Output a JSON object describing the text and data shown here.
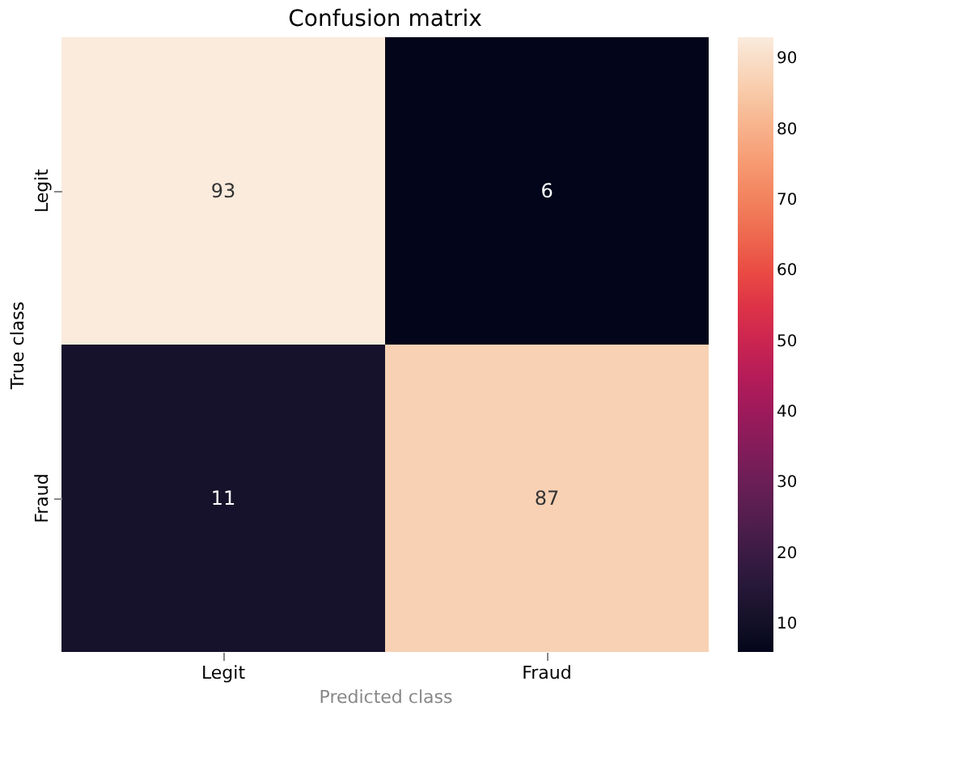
{
  "chart_data": {
    "type": "heatmap",
    "title": "Confusion matrix",
    "xlabel": "Predicted class",
    "ylabel": "True class",
    "categories": [
      "Legit",
      "Fraud"
    ],
    "y_categories": [
      "Legit",
      "Fraud"
    ],
    "cells": [
      [
        93,
        6
      ],
      [
        11,
        87
      ]
    ],
    "clim": [
      6,
      93
    ],
    "cticks": [
      10,
      20,
      30,
      40,
      50,
      60,
      70,
      80,
      90
    ],
    "data_labels": true
  }
}
